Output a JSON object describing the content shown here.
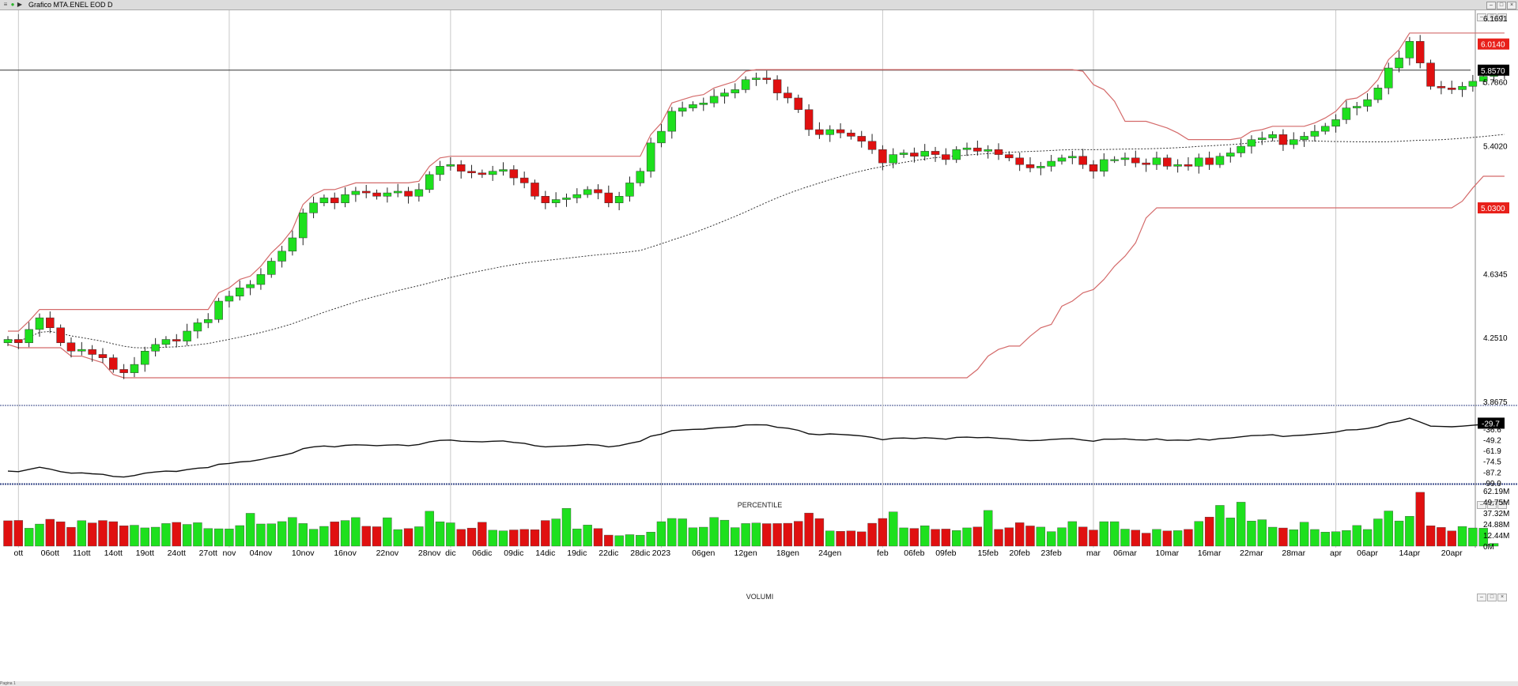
{
  "window": {
    "title": "Grafico MTA.ENEL EOD D",
    "controls": [
      "–",
      "□",
      "×"
    ]
  },
  "panes": {
    "percentile_title": "PERCENTILE",
    "volume_title": "VOLUMI"
  },
  "status_text": "Pagina 1",
  "colors": {
    "up": "#1ee01e",
    "down": "#e01010",
    "channel": "#d46a6a",
    "ma": "#333333",
    "lastprice_bg": "#000000",
    "tag_bg": "#e8201a"
  },
  "chart_data": [
    {
      "type": "candlestick",
      "pane": "price",
      "ylim": [
        3.8675,
        6.1691
      ],
      "yticks": [
        "6.1691",
        "5.7860",
        "5.4020",
        "5.0180",
        "4.6345",
        "4.2510",
        "3.8675"
      ],
      "price_tags": [
        {
          "label": "6.0140",
          "value": 6.014,
          "style": "red"
        },
        {
          "label": "5.8570",
          "value": 5.857,
          "style": "black"
        },
        {
          "label": "5.0300",
          "value": 5.03,
          "style": "red"
        }
      ],
      "horizontal_line": 5.857,
      "x_labels": [
        {
          "label": "ott",
          "bar": 1
        },
        {
          "label": "06ott",
          "bar": 4
        },
        {
          "label": "11ott",
          "bar": 7
        },
        {
          "label": "14ott",
          "bar": 10
        },
        {
          "label": "19ott",
          "bar": 13
        },
        {
          "label": "24ott",
          "bar": 16
        },
        {
          "label": "27ott",
          "bar": 19
        },
        {
          "label": "nov",
          "bar": 21
        },
        {
          "label": "04nov",
          "bar": 24
        },
        {
          "label": "10nov",
          "bar": 28
        },
        {
          "label": "16nov",
          "bar": 32
        },
        {
          "label": "22nov",
          "bar": 36
        },
        {
          "label": "28nov",
          "bar": 40
        },
        {
          "label": "dic",
          "bar": 42
        },
        {
          "label": "06dic",
          "bar": 45
        },
        {
          "label": "09dic",
          "bar": 48
        },
        {
          "label": "14dic",
          "bar": 51
        },
        {
          "label": "19dic",
          "bar": 54
        },
        {
          "label": "22dic",
          "bar": 57
        },
        {
          "label": "28dic",
          "bar": 60
        },
        {
          "label": "2023",
          "bar": 62
        },
        {
          "label": "06gen",
          "bar": 66
        },
        {
          "label": "12gen",
          "bar": 70
        },
        {
          "label": "18gen",
          "bar": 74
        },
        {
          "label": "24gen",
          "bar": 78
        },
        {
          "label": "feb",
          "bar": 83
        },
        {
          "label": "06feb",
          "bar": 86
        },
        {
          "label": "09feb",
          "bar": 89
        },
        {
          "label": "15feb",
          "bar": 93
        },
        {
          "label": "20feb",
          "bar": 96
        },
        {
          "label": "23feb",
          "bar": 99
        },
        {
          "label": "mar",
          "bar": 103
        },
        {
          "label": "06mar",
          "bar": 106
        },
        {
          "label": "10mar",
          "bar": 110
        },
        {
          "label": "16mar",
          "bar": 114
        },
        {
          "label": "22mar",
          "bar": 118
        },
        {
          "label": "28mar",
          "bar": 122
        },
        {
          "label": "apr",
          "bar": 126
        },
        {
          "label": "06apr",
          "bar": 129
        },
        {
          "label": "14apr",
          "bar": 133
        },
        {
          "label": "20apr",
          "bar": 137
        }
      ],
      "close": [
        4.24,
        4.22,
        4.3,
        4.37,
        4.31,
        4.22,
        4.17,
        4.18,
        4.15,
        4.13,
        4.06,
        4.04,
        4.09,
        4.17,
        4.21,
        4.24,
        4.23,
        4.29,
        4.34,
        4.36,
        4.47,
        4.5,
        4.55,
        4.57,
        4.63,
        4.71,
        4.77,
        4.85,
        5.0,
        5.06,
        5.09,
        5.06,
        5.11,
        5.13,
        5.12,
        5.1,
        5.12,
        5.13,
        5.1,
        5.14,
        5.23,
        5.28,
        5.29,
        5.25,
        5.24,
        5.23,
        5.25,
        5.26,
        5.21,
        5.18,
        5.1,
        5.06,
        5.08,
        5.09,
        5.11,
        5.14,
        5.12,
        5.06,
        5.1,
        5.18,
        5.25,
        5.42,
        5.49,
        5.61,
        5.63,
        5.65,
        5.66,
        5.7,
        5.72,
        5.74,
        5.8,
        5.81,
        5.8,
        5.72,
        5.69,
        5.62,
        5.5,
        5.47,
        5.5,
        5.48,
        5.46,
        5.43,
        5.38,
        5.3,
        5.35,
        5.36,
        5.34,
        5.37,
        5.35,
        5.32,
        5.38,
        5.39,
        5.37,
        5.38,
        5.35,
        5.33,
        5.29,
        5.27,
        5.28,
        5.31,
        5.33,
        5.34,
        5.29,
        5.25,
        5.32,
        5.32,
        5.33,
        5.3,
        5.29,
        5.33,
        5.28,
        5.29,
        5.28,
        5.33,
        5.29,
        5.34,
        5.36,
        5.4,
        5.44,
        5.45,
        5.47,
        5.41,
        5.44,
        5.46,
        5.49,
        5.52,
        5.56,
        5.63,
        5.64,
        5.68,
        5.75,
        5.87,
        5.93,
        6.03,
        5.9,
        5.76,
        5.75,
        5.74,
        5.76,
        5.79,
        5.82,
        5.84,
        5.83
      ]
    },
    {
      "type": "line",
      "pane": "percentile",
      "ylim": [
        -99.9,
        -20
      ],
      "yticks": [
        "-36.6",
        "-49.2",
        "-61.9",
        "-74.5",
        "-87.2",
        "-99.9"
      ],
      "last_label": "-29.7",
      "last_value": -29.7
    },
    {
      "type": "bar",
      "pane": "volume",
      "yticks": [
        "62.19M",
        "49.75M",
        "37.32M",
        "24.88M",
        "12.44M",
        "0M"
      ],
      "ylim": [
        0,
        62.19
      ],
      "values_millions": [
        28.5,
        28.9,
        20.1,
        24.8,
        30.2,
        27.4,
        21.2,
        28.6,
        26.1,
        28.8,
        27.5,
        22.9,
        23.5,
        20.5,
        21.3,
        25.4,
        26.7,
        24.4,
        26.3,
        19.8,
        19.5,
        19.4,
        23.1,
        36.9,
        24.9,
        25.1,
        27.6,
        32.2,
        25.4,
        19.0,
        22.2,
        27.3,
        28.8,
        32.1,
        22.3,
        21.8,
        31.9,
        18.6,
        19.8,
        21.8,
        39.2,
        27.4,
        26.2,
        18.8,
        20.3,
        26.8,
        17.9,
        17.2,
        18.2,
        18.8,
        18.5,
        28.8,
        30.6,
        42.5,
        19.4,
        23.7,
        19.8,
        12.4,
        11.7,
        12.9,
        12.3,
        15.8,
        27.5,
        31.1,
        30.7,
        20.6,
        21.3,
        32.2,
        29.2,
        20.8,
        25.4,
        26.0,
        25.3,
        25.4,
        25.7,
        27.9,
        37.2,
        31.0,
        17.1,
        16.7,
        17.1,
        16.1,
        25.7,
        31.1,
        38.5,
        20.5,
        19.9,
        22.9,
        18.9,
        19.2,
        17.5,
        20.5,
        21.5,
        40.1,
        18.8,
        20.7,
        26.3,
        22.7,
        21.4,
        16.3,
        20.7,
        27.6,
        21.5,
        18.1,
        27.5,
        27.5,
        19.1,
        18.0,
        14.6,
        18.8,
        17.1,
        17.4,
        18.8,
        27.8,
        32.7,
        45.8,
        31.7,
        49.4,
        28.2,
        29.7,
        21.3,
        20.4,
        18.5,
        26.9,
        18.7,
        15.8,
        16.2,
        17.6,
        23.2,
        18.7,
        30.6,
        39.5,
        28.3,
        33.6,
        60.5,
        22.9,
        21.0,
        17.1,
        22.1,
        20.4,
        20.1,
        3.0
      ],
      "up_flags": [
        0,
        0,
        1,
        1,
        0,
        0,
        0,
        1,
        0,
        0,
        0,
        0,
        1,
        1,
        1,
        1,
        0,
        1,
        1,
        1,
        1,
        1,
        1,
        1,
        1,
        1,
        1,
        1,
        1,
        1,
        1,
        0,
        1,
        1,
        0,
        0,
        1,
        1,
        0,
        1,
        1,
        1,
        1,
        0,
        0,
        0,
        1,
        1,
        0,
        0,
        0,
        0,
        1,
        1,
        1,
        1,
        0,
        0,
        1,
        1,
        1,
        1,
        1,
        1,
        1,
        1,
        1,
        1,
        1,
        1,
        1,
        1,
        0,
        0,
        0,
        0,
        0,
        0,
        1,
        0,
        0,
        0,
        0,
        0,
        1,
        1,
        0,
        1,
        0,
        0,
        1,
        1,
        0,
        1,
        0,
        0,
        0,
        0,
        1,
        1,
        1,
        1,
        0,
        0,
        1,
        1,
        1,
        0,
        0,
        1,
        0,
        1,
        0,
        1,
        0,
        1,
        1,
        1,
        1,
        1,
        1,
        0,
        1,
        1,
        1,
        1,
        1,
        1,
        1,
        1,
        1,
        1,
        1,
        1,
        0,
        0,
        0,
        0,
        1,
        1,
        1,
        1,
        0
      ]
    }
  ]
}
